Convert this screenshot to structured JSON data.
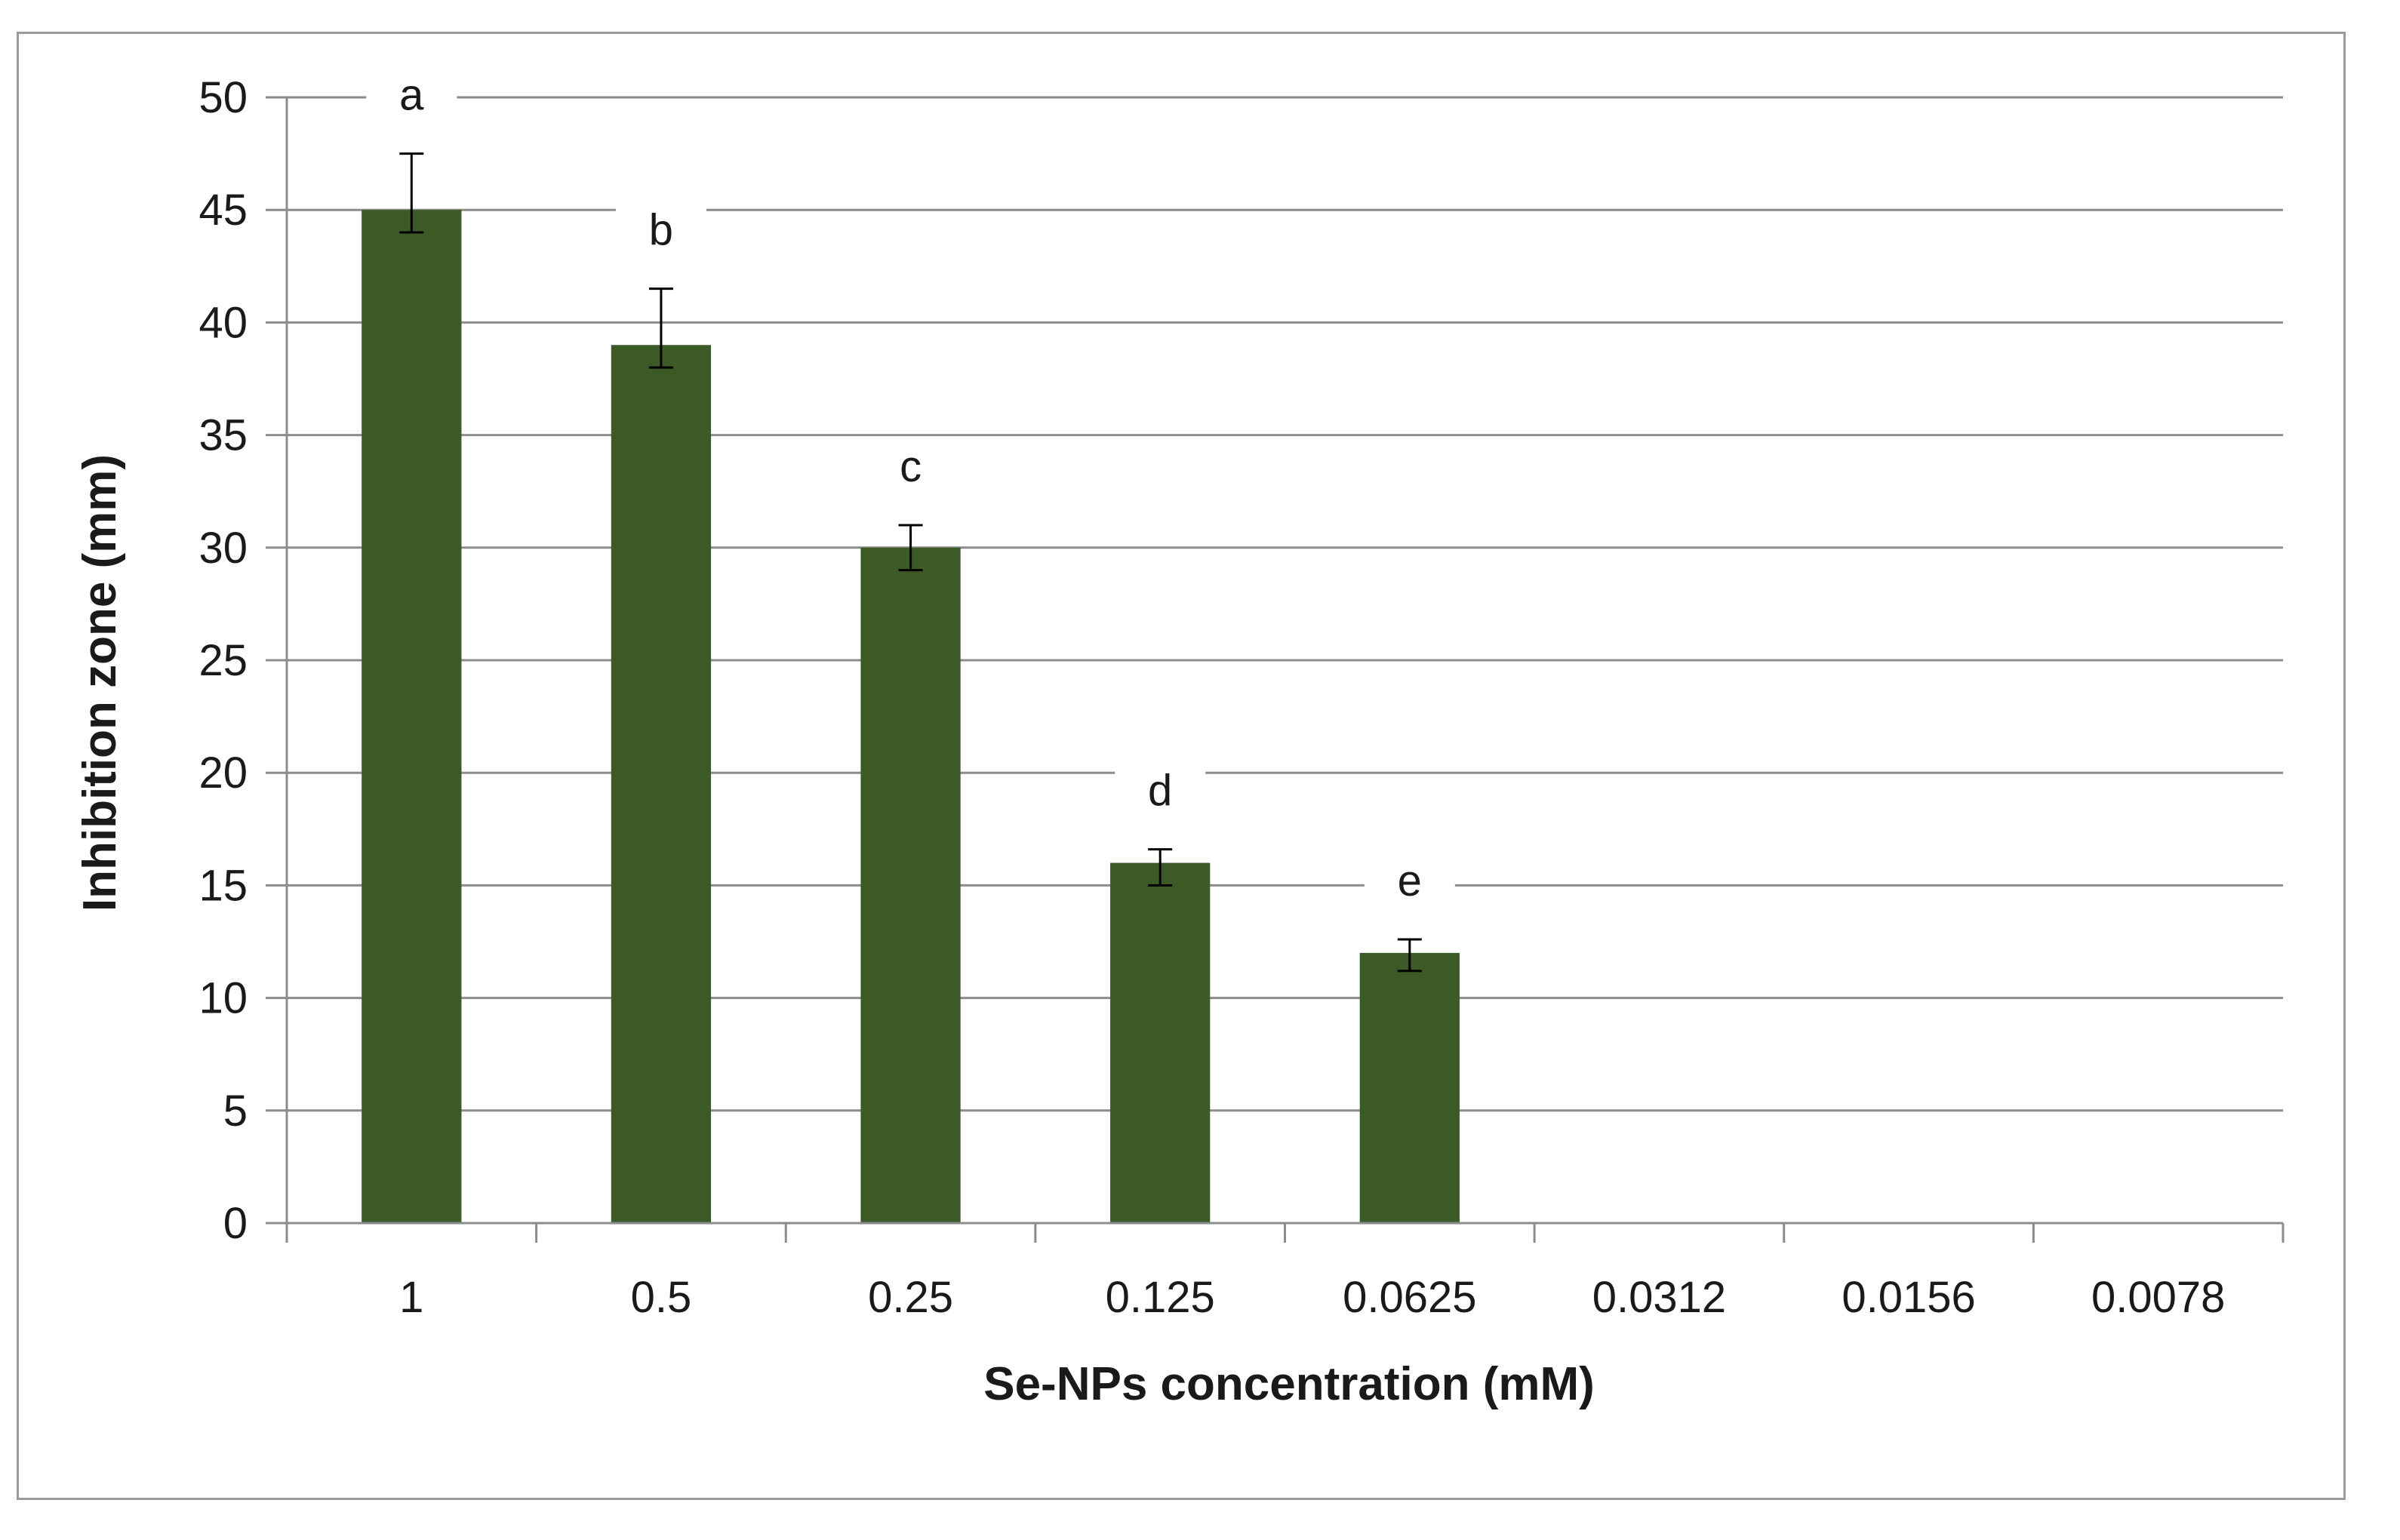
{
  "chart_data": {
    "type": "bar",
    "title": "",
    "xlabel": "Se-NPs concentration (mM)",
    "ylabel": "Inhibition zone (mm)",
    "categories": [
      "1",
      "0.5",
      "0.25",
      "0.125",
      "0.0625",
      "0.0312",
      "0.0156",
      "0.0078"
    ],
    "values": [
      45,
      39,
      30,
      16,
      12,
      0,
      0,
      0
    ],
    "error_upper": [
      47.5,
      41.5,
      31,
      16.6,
      12.6,
      null,
      null,
      null
    ],
    "error_lower": [
      44,
      38,
      29,
      15,
      11.2,
      null,
      null,
      null
    ],
    "significance_labels": [
      "a",
      "b",
      "c",
      "d",
      "e",
      "",
      "",
      ""
    ],
    "ylim": [
      0,
      50
    ],
    "yticks": [
      0,
      5,
      10,
      15,
      20,
      25,
      30,
      35,
      40,
      45,
      50
    ],
    "grid": true,
    "legend": "none",
    "bar_color": "#3b5a26"
  }
}
